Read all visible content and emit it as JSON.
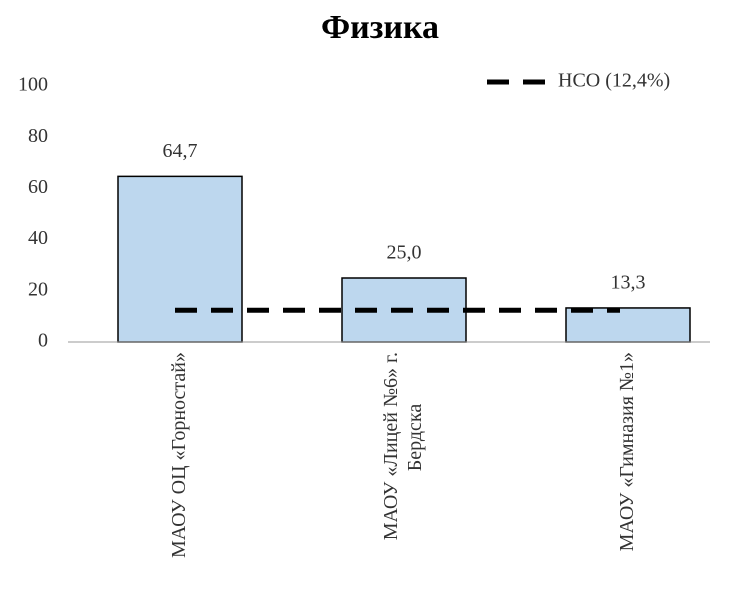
{
  "chart_data": {
    "type": "bar",
    "title": "Физика",
    "categories": [
      "МАОУ ОЦ «Горностай»",
      "МАОУ «Лицей №6» г. Бердска",
      "МАОУ «Гимназия №1»"
    ],
    "values": [
      64.7,
      25.0,
      13.3
    ],
    "value_labels": [
      "64,7",
      "25,0",
      "13,3"
    ],
    "color": "#bdd7ee",
    "reference_line": {
      "name": "НСО (12,4%)",
      "value": 12.4,
      "color": "#000000"
    },
    "ylim": [
      0,
      100
    ],
    "yticks": [
      0,
      20,
      40,
      60,
      80,
      100
    ],
    "grid": false,
    "legend": "top-right"
  }
}
